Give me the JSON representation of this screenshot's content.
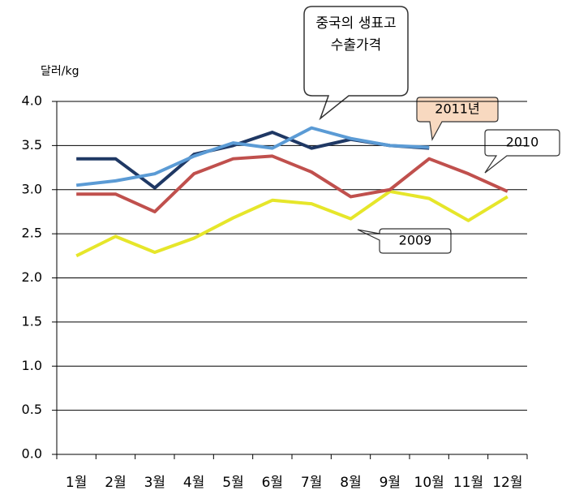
{
  "chart_data": {
    "type": "line",
    "y_label": "달러/kg",
    "categories": [
      "1월",
      "2월",
      "3월",
      "4월",
      "5월",
      "6월",
      "7월",
      "8월",
      "9월",
      "10월",
      "11월",
      "12월"
    ],
    "series": [
      {
        "name": "2009",
        "color": "#e6e62a",
        "values": [
          2.25,
          2.47,
          2.29,
          2.45,
          2.68,
          2.88,
          2.84,
          2.67,
          2.98,
          2.9,
          2.65,
          2.92
        ]
      },
      {
        "name": "2010",
        "color": "#c0504d",
        "values": [
          2.95,
          2.95,
          2.75,
          3.18,
          3.35,
          3.38,
          3.2,
          2.92,
          3.0,
          3.35,
          3.18,
          2.98
        ]
      },
      {
        "name": "2011년",
        "color": "#1f3864",
        "values": [
          3.35,
          3.35,
          3.02,
          3.4,
          3.5,
          3.65,
          3.47,
          3.57,
          3.5,
          3.47,
          null,
          null
        ]
      },
      {
        "name": "중국의 생표고 수출가격",
        "color": "#5b9bd5",
        "values": [
          3.05,
          3.1,
          3.18,
          3.38,
          3.53,
          3.47,
          3.7,
          3.58,
          3.5,
          3.48,
          null,
          null
        ]
      }
    ],
    "ylim": [
      0,
      4
    ],
    "yticks": [
      {
        "value": 0,
        "label": "0.0"
      },
      0.5,
      {
        "value": 1,
        "label": "1.0"
      },
      1.5,
      {
        "value": 2,
        "label": "2.0"
      },
      2.5,
      {
        "value": 3,
        "label": "3.0"
      },
      3.5,
      {
        "value": 4,
        "label": "4.0"
      }
    ],
    "grid": true
  }
}
